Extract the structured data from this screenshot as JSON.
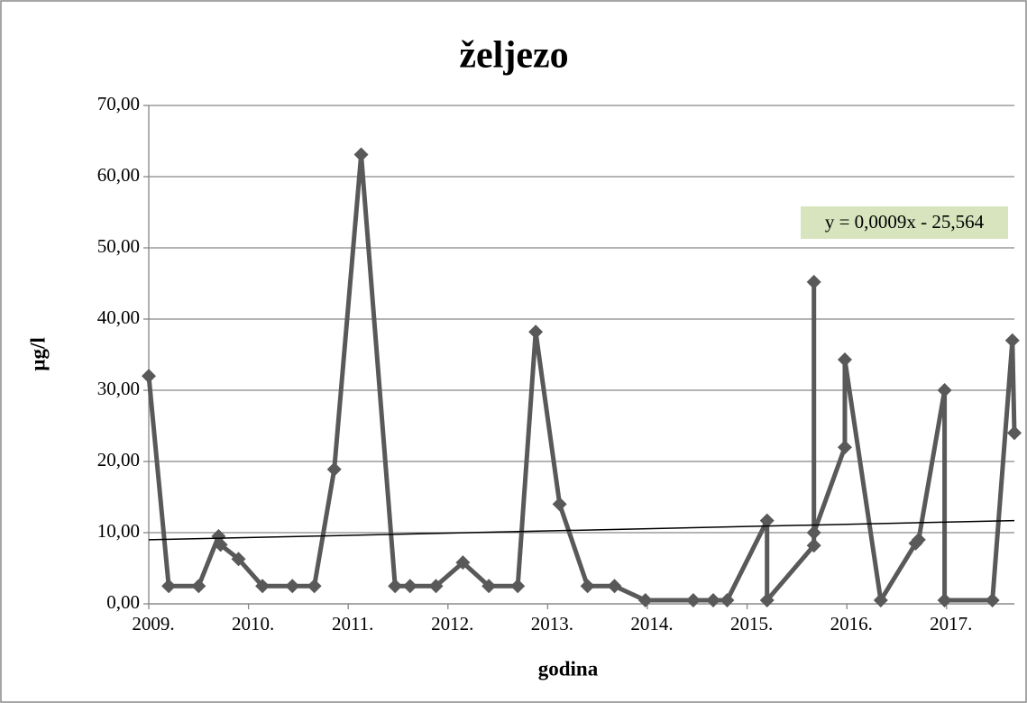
{
  "chart_data": {
    "type": "line",
    "title": "željezo",
    "x_label": "godina",
    "y_label": "µg/l",
    "x": [
      2009.0,
      2009.2,
      2009.5,
      2009.7,
      2009.72,
      2009.9,
      2010.14,
      2010.44,
      2010.66,
      2010.86,
      2011.13,
      2011.47,
      2011.62,
      2011.88,
      2012.15,
      2012.41,
      2012.7,
      2012.88,
      2013.12,
      2013.4,
      2013.67,
      2013.98,
      2014.46,
      2014.66,
      2014.8,
      2015.2,
      2015.2,
      2015.67,
      2015.67,
      2015.67,
      2015.98,
      2015.98,
      2016.34,
      2016.69,
      2016.72,
      2016.98,
      2016.98,
      2017.46,
      2017.66,
      2017.68
    ],
    "values": [
      32.0,
      2.5,
      2.5,
      9.5,
      8.3,
      6.3,
      2.5,
      2.5,
      2.5,
      18.9,
      63.1,
      2.5,
      2.5,
      2.5,
      5.8,
      2.5,
      2.5,
      38.2,
      14.0,
      2.5,
      2.5,
      0.5,
      0.5,
      0.5,
      0.5,
      11.7,
      0.5,
      8.2,
      45.2,
      10.0,
      22.0,
      34.3,
      0.5,
      8.5,
      9.0,
      30.0,
      0.5,
      0.5,
      37.0,
      24.0
    ],
    "color": "#595959",
    "trendline": {
      "equation": "y = 0,0009x - 25,564",
      "x": [
        2009.0,
        2017.68
      ],
      "values": [
        9.0,
        11.7
      ],
      "color": "#000000"
    },
    "xlim": [
      2009.0,
      2017.68
    ],
    "xticks": [
      {
        "value": 2009,
        "label": "2009."
      },
      {
        "value": 2010,
        "label": "2010."
      },
      {
        "value": 2011,
        "label": "2011."
      },
      {
        "value": 2012,
        "label": "2012."
      },
      {
        "value": 2013,
        "label": "2013."
      },
      {
        "value": 2014,
        "label": "2014."
      },
      {
        "value": 2015,
        "label": "2015."
      },
      {
        "value": 2016,
        "label": "2016."
      },
      {
        "value": 2017,
        "label": "2017."
      }
    ],
    "ylim": [
      0,
      70
    ],
    "yticks": [
      {
        "value": 0,
        "label": "0,00"
      },
      {
        "value": 10,
        "label": "10,00"
      },
      {
        "value": 20,
        "label": "20,00"
      },
      {
        "value": 30,
        "label": "30,00"
      },
      {
        "value": 40,
        "label": "40,00"
      },
      {
        "value": 50,
        "label": "50,00"
      },
      {
        "value": 60,
        "label": "60,00"
      },
      {
        "value": 70,
        "label": "70,00"
      }
    ],
    "grid": true
  }
}
